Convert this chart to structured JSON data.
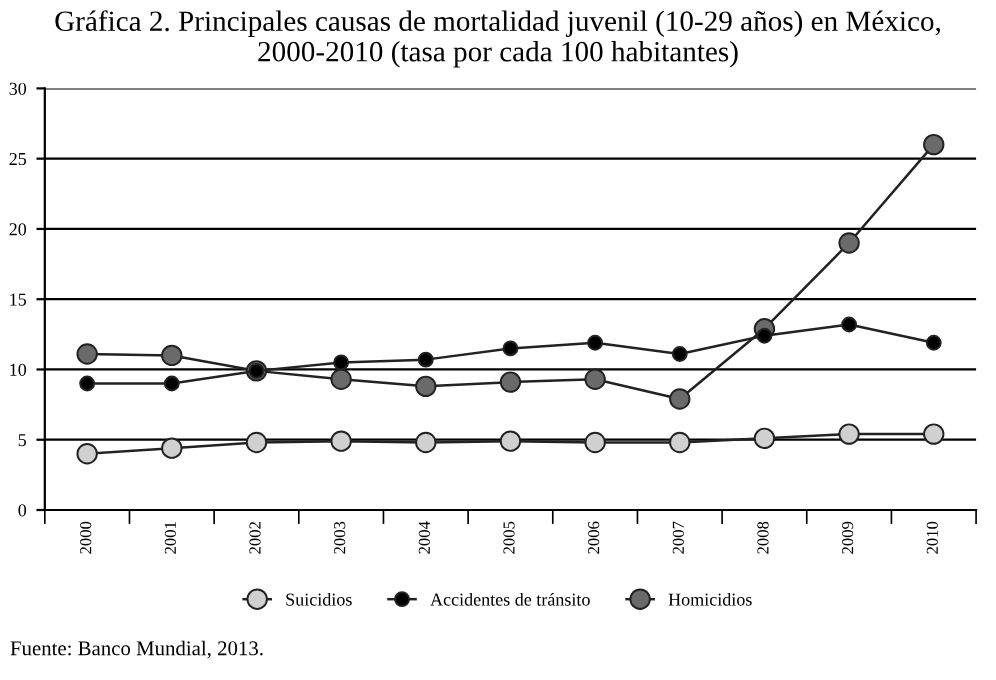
{
  "chart_data": {
    "type": "line",
    "title": "Gráfica 2. Principales causas de mortalidad juvenil (10-29 años) en México, 2000-2010 (tasa por cada 100 habitantes)",
    "categories": [
      "2000",
      "2001",
      "2002",
      "2003",
      "2004",
      "2005",
      "2006",
      "2007",
      "2008",
      "2009",
      "2010"
    ],
    "series": [
      {
        "name": "Suicidios",
        "color": "#d0d0d0",
        "values": [
          4.0,
          4.4,
          4.8,
          4.9,
          4.8,
          4.9,
          4.8,
          4.8,
          5.1,
          5.4,
          5.4
        ]
      },
      {
        "name": "Accidentes de tránsito",
        "color": "#000000",
        "values": [
          9.0,
          9.0,
          9.9,
          10.5,
          10.7,
          11.5,
          11.9,
          11.1,
          12.4,
          13.2,
          11.9
        ]
      },
      {
        "name": "Homicidios",
        "color": "#6a6a6a",
        "values": [
          11.1,
          11.0,
          9.9,
          9.3,
          8.8,
          9.1,
          9.3,
          7.9,
          12.9,
          19.0,
          26.0
        ]
      }
    ],
    "ylim": [
      0,
      30
    ],
    "yticks": [
      0,
      5,
      10,
      15,
      20,
      25,
      30
    ],
    "grid": "y",
    "legend": "bottom",
    "marker": "circle",
    "annotations": [
      "Fuente: Banco Mundial, 2013."
    ]
  }
}
